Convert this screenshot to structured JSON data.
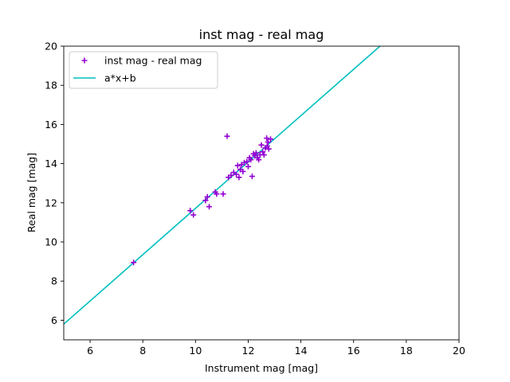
{
  "chart_data": {
    "type": "scatter",
    "title": "inst mag - real mag",
    "xlabel": "Instrument mag [mag]",
    "ylabel": "Real mag [mag]",
    "xlim": [
      5,
      20
    ],
    "ylim": [
      5,
      20
    ],
    "xticks": [
      6,
      8,
      10,
      12,
      14,
      16,
      18,
      20
    ],
    "yticks": [
      6,
      8,
      10,
      12,
      14,
      16,
      18,
      20
    ],
    "grid": false,
    "legend_position": "upper-left",
    "series": [
      {
        "name": "inst mag - real mag",
        "kind": "scatter",
        "marker": "plus",
        "color": "#9400d3",
        "points": [
          [
            7.65,
            8.95
          ],
          [
            9.8,
            11.6
          ],
          [
            9.92,
            11.38
          ],
          [
            10.38,
            12.12
          ],
          [
            10.45,
            12.3
          ],
          [
            10.52,
            11.8
          ],
          [
            10.75,
            12.55
          ],
          [
            10.8,
            12.45
          ],
          [
            11.05,
            12.45
          ],
          [
            11.2,
            15.4
          ],
          [
            11.25,
            13.3
          ],
          [
            11.35,
            13.4
          ],
          [
            11.45,
            13.55
          ],
          [
            11.55,
            13.45
          ],
          [
            11.6,
            13.9
          ],
          [
            11.65,
            13.3
          ],
          [
            11.7,
            13.7
          ],
          [
            11.75,
            13.95
          ],
          [
            11.8,
            13.6
          ],
          [
            11.85,
            14.05
          ],
          [
            11.95,
            14.1
          ],
          [
            12.0,
            13.85
          ],
          [
            12.05,
            14.3
          ],
          [
            12.1,
            14.2
          ],
          [
            12.15,
            13.35
          ],
          [
            12.2,
            14.5
          ],
          [
            12.25,
            14.4
          ],
          [
            12.3,
            14.55
          ],
          [
            12.35,
            14.3
          ],
          [
            12.4,
            14.2
          ],
          [
            12.45,
            14.45
          ],
          [
            12.5,
            14.95
          ],
          [
            12.55,
            14.6
          ],
          [
            12.6,
            14.45
          ],
          [
            12.65,
            14.8
          ],
          [
            12.7,
            15.3
          ],
          [
            12.72,
            14.9
          ],
          [
            12.75,
            15.1
          ],
          [
            12.78,
            14.75
          ],
          [
            12.85,
            15.25
          ]
        ]
      },
      {
        "name": "a*x+b",
        "kind": "line",
        "color": "#00bfbf",
        "x": [
          5,
          17
        ],
        "y": [
          5.8,
          20.0
        ]
      }
    ]
  }
}
